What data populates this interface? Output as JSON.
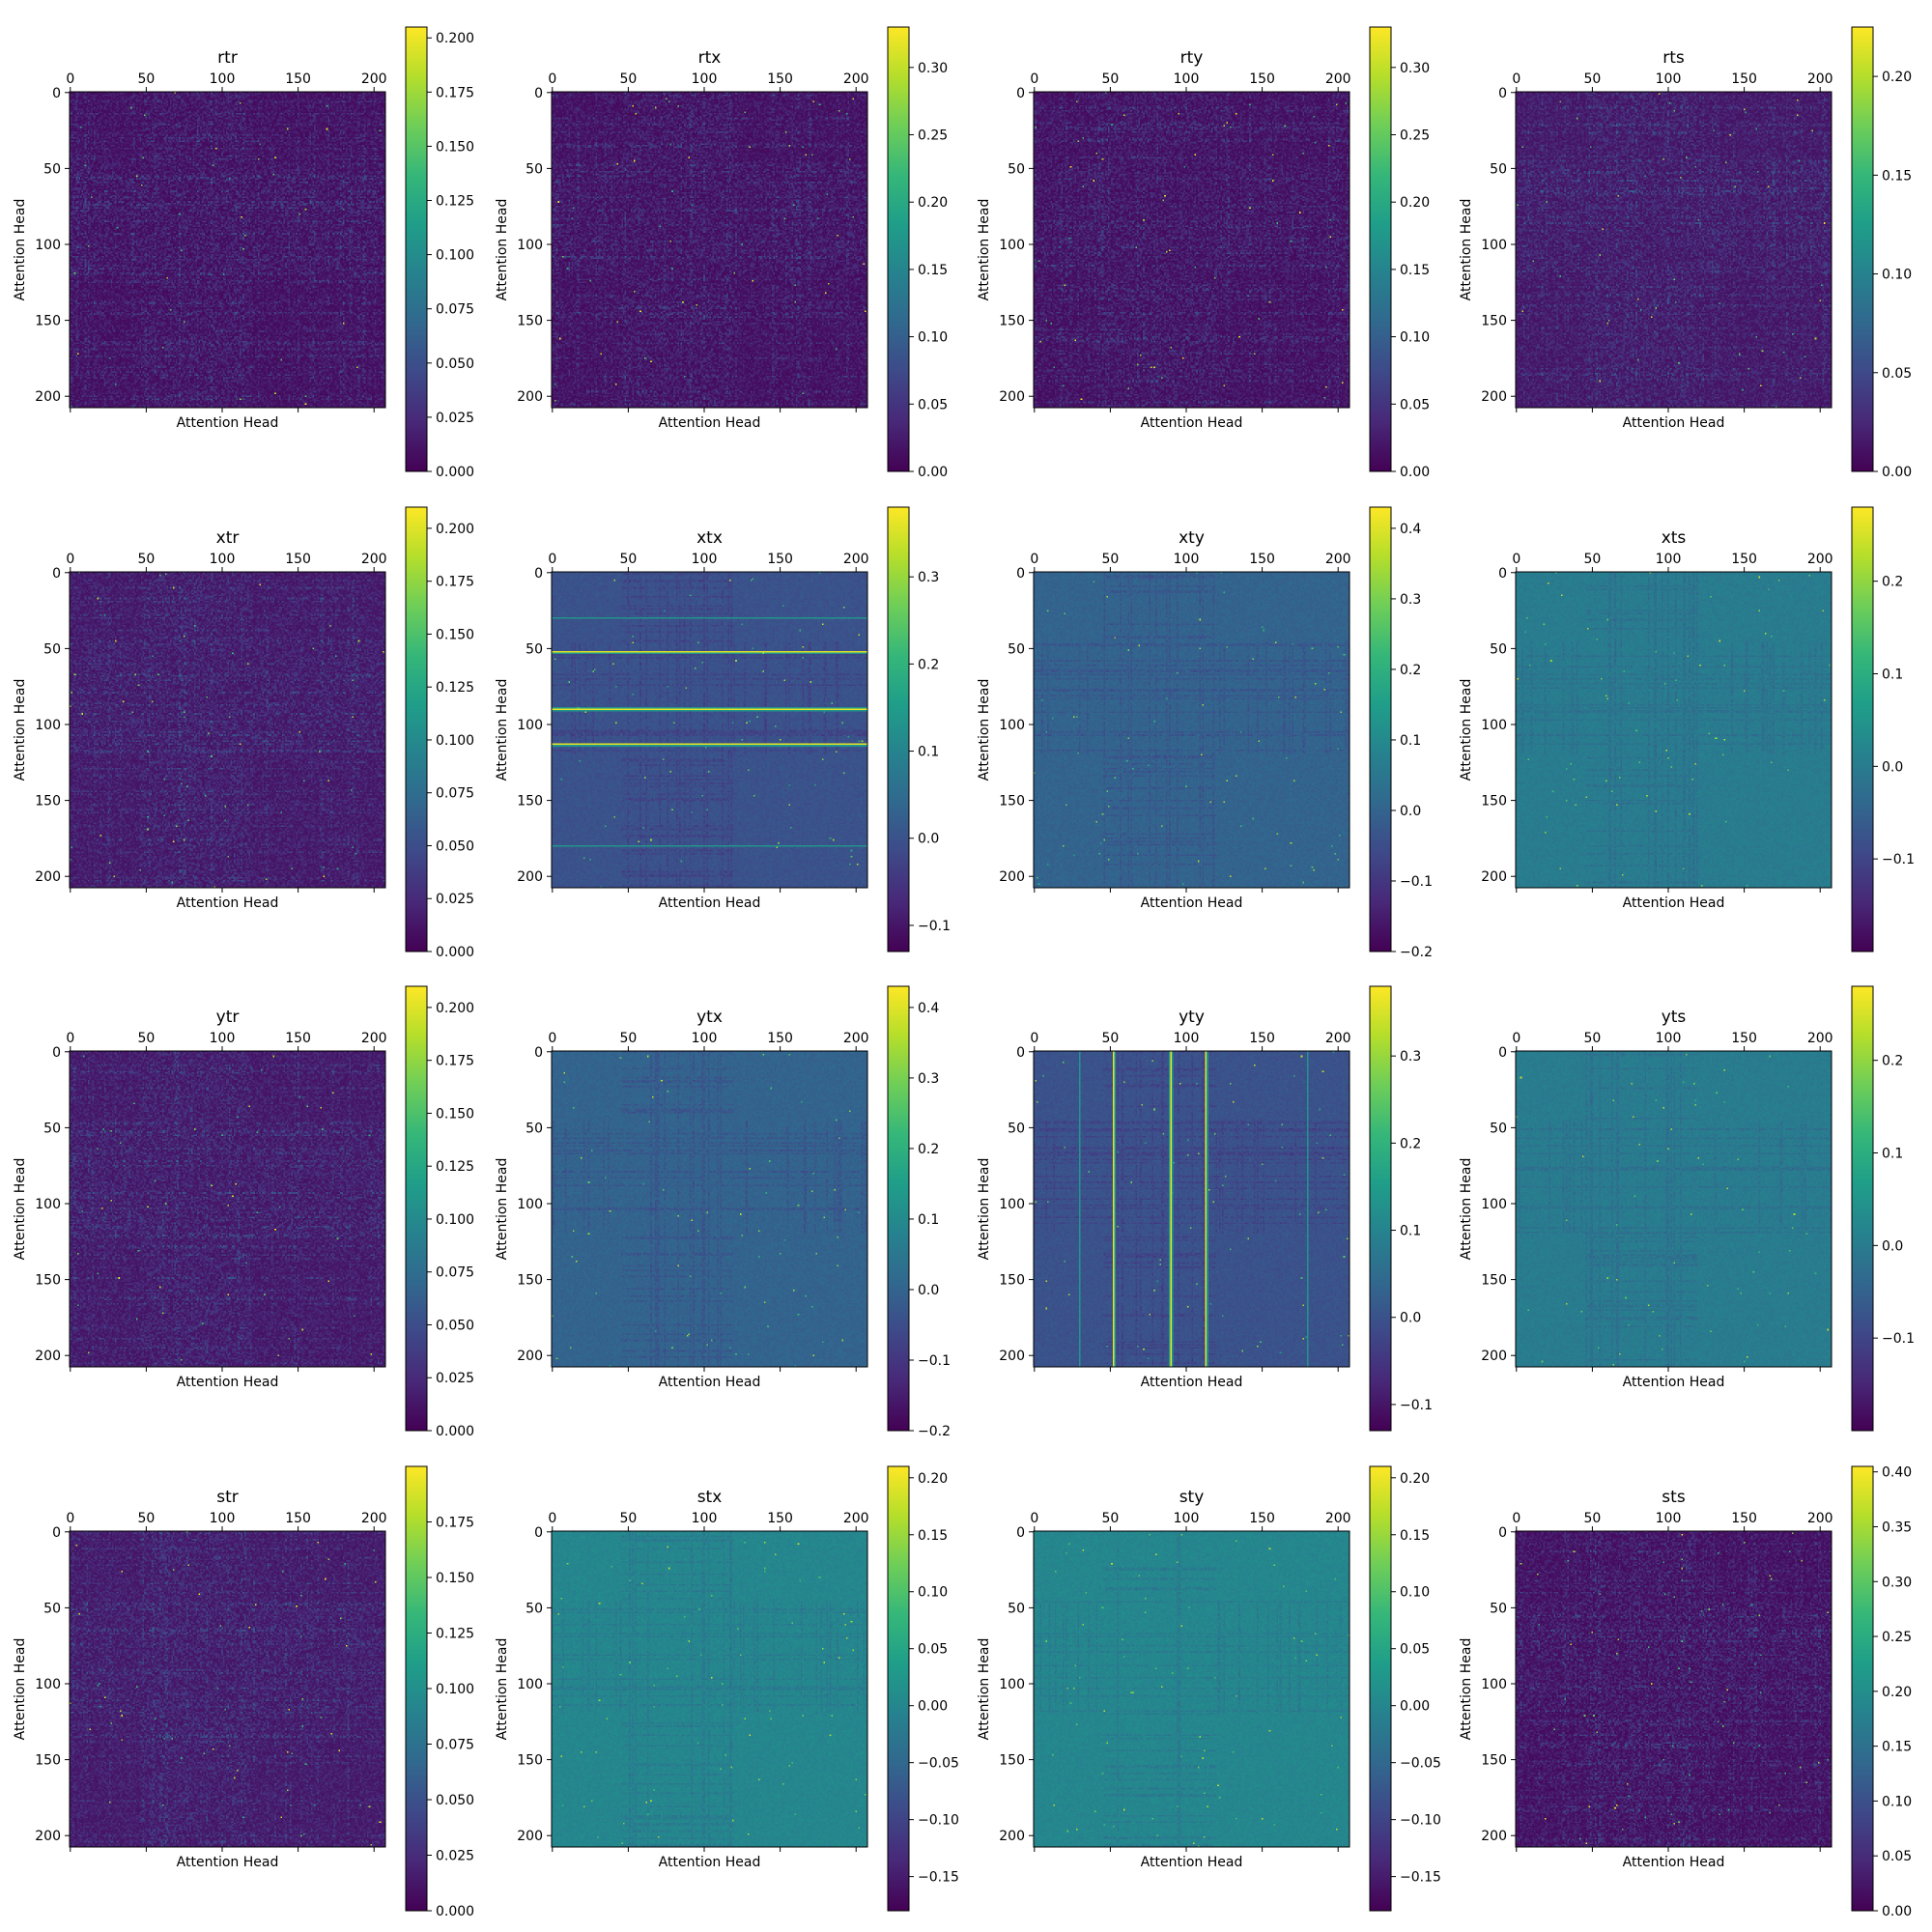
{
  "figure": {
    "grid": false,
    "colormap": "viridis",
    "colormap_stops": [
      "#440154",
      "#482878",
      "#3e4989",
      "#31688e",
      "#26828e",
      "#1f9e89",
      "#35b779",
      "#6ece58",
      "#b5de2b",
      "#fde725"
    ]
  },
  "chart_data": [
    {
      "type": "heatmap",
      "title": "rtr",
      "xlabel": "Attention Head",
      "ylabel": "Attention Head",
      "size": 208,
      "xticks": [
        0,
        50,
        100,
        150,
        200
      ],
      "yticks": [
        0,
        50,
        100,
        150,
        200
      ],
      "colorbar": {
        "range": [
          0,
          0.205
        ],
        "ticks": [
          0.0,
          0.025,
          0.05,
          0.075,
          0.1,
          0.125,
          0.15,
          0.175,
          0.2
        ],
        "tick_labels": [
          "0.000",
          "0.025",
          "0.050",
          "0.075",
          "0.100",
          "0.125",
          "0.150",
          "0.175",
          "0.200"
        ]
      },
      "baseline": 0.005,
      "pattern": "sparse peaks around heads 50-115"
    },
    {
      "type": "heatmap",
      "title": "rtx",
      "xlabel": "Attention Head",
      "ylabel": "Attention Head",
      "size": 208,
      "xticks": [
        0,
        50,
        100,
        150,
        200
      ],
      "yticks": [
        0,
        50,
        100,
        150,
        200
      ],
      "colorbar": {
        "range": [
          0,
          0.33
        ],
        "ticks": [
          0.0,
          0.05,
          0.1,
          0.15,
          0.2,
          0.25,
          0.3
        ],
        "tick_labels": [
          "0.00",
          "0.05",
          "0.10",
          "0.15",
          "0.20",
          "0.25",
          "0.30"
        ]
      },
      "baseline": 0.008,
      "pattern": "faint horizontal row structure"
    },
    {
      "type": "heatmap",
      "title": "rty",
      "xlabel": "Attention Head",
      "ylabel": "Attention Head",
      "size": 208,
      "xticks": [
        0,
        50,
        100,
        150,
        200
      ],
      "yticks": [
        0,
        50,
        100,
        150,
        200
      ],
      "colorbar": {
        "range": [
          0,
          0.33
        ],
        "ticks": [
          0.0,
          0.05,
          0.1,
          0.15,
          0.2,
          0.25,
          0.3
        ],
        "tick_labels": [
          "0.00",
          "0.05",
          "0.10",
          "0.15",
          "0.20",
          "0.25",
          "0.30"
        ]
      },
      "baseline": 0.008,
      "pattern": "faint vertical column structure"
    },
    {
      "type": "heatmap",
      "title": "rts",
      "xlabel": "Attention Head",
      "ylabel": "Attention Head",
      "size": 208,
      "xticks": [
        0,
        50,
        100,
        150,
        200
      ],
      "yticks": [
        0,
        50,
        100,
        150,
        200
      ],
      "colorbar": {
        "range": [
          0,
          0.225
        ],
        "ticks": [
          0.0,
          0.05,
          0.1,
          0.15,
          0.2
        ],
        "tick_labels": [
          "0.00",
          "0.05",
          "0.10",
          "0.15",
          "0.20"
        ]
      },
      "baseline": 0.01,
      "pattern": "grid of rows and columns, strongest in heads 50-120"
    },
    {
      "type": "heatmap",
      "title": "xtr",
      "xlabel": "Attention Head",
      "ylabel": "Attention Head",
      "size": 208,
      "xticks": [
        0,
        50,
        100,
        150,
        200
      ],
      "yticks": [
        0,
        50,
        100,
        150,
        200
      ],
      "colorbar": {
        "range": [
          0,
          0.21
        ],
        "ticks": [
          0.0,
          0.025,
          0.05,
          0.075,
          0.1,
          0.125,
          0.15,
          0.175,
          0.2
        ],
        "tick_labels": [
          "0.000",
          "0.025",
          "0.050",
          "0.075",
          "0.100",
          "0.125",
          "0.150",
          "0.175",
          "0.200"
        ]
      },
      "baseline": 0.01,
      "pattern": "horizontal row structure"
    },
    {
      "type": "heatmap",
      "title": "xtx",
      "xlabel": "Attention Head",
      "ylabel": "Attention Head",
      "size": 208,
      "xticks": [
        0,
        50,
        100,
        150,
        200
      ],
      "yticks": [
        0,
        50,
        100,
        150,
        200
      ],
      "colorbar": {
        "range": [
          -0.13,
          0.38
        ],
        "ticks": [
          -0.1,
          0.0,
          0.1,
          0.2,
          0.3
        ],
        "tick_labels": [
          "−0.1",
          "0.0",
          "0.1",
          "0.2",
          "0.3"
        ]
      },
      "baseline": 0.0,
      "pattern": "bright horizontal lines at rows 52, 90, 113"
    },
    {
      "type": "heatmap",
      "title": "xty",
      "xlabel": "Attention Head",
      "ylabel": "Attention Head",
      "size": 208,
      "xticks": [
        0,
        50,
        100,
        150,
        200
      ],
      "yticks": [
        0,
        50,
        100,
        150,
        200
      ],
      "colorbar": {
        "range": [
          -0.2,
          0.43
        ],
        "ticks": [
          -0.2,
          -0.1,
          0.0,
          0.1,
          0.2,
          0.3,
          0.4
        ],
        "tick_labels": [
          "−0.2",
          "−0.1",
          "0.0",
          "0.1",
          "0.2",
          "0.3",
          "0.4"
        ]
      },
      "baseline": 0.0,
      "pattern": "near-uniform with scattered outliers"
    },
    {
      "type": "heatmap",
      "title": "xts",
      "xlabel": "Attention Head",
      "ylabel": "Attention Head",
      "size": 208,
      "xticks": [
        0,
        50,
        100,
        150,
        200
      ],
      "yticks": [
        0,
        50,
        100,
        150,
        200
      ],
      "colorbar": {
        "range": [
          -0.2,
          0.28
        ],
        "ticks": [
          -0.1,
          0.0,
          0.1,
          0.2
        ],
        "tick_labels": [
          "−0.1",
          "0.0",
          "0.1",
          "0.2"
        ]
      },
      "baseline": 0.0,
      "pattern": "grid with dark negative patches in heads 50-120"
    },
    {
      "type": "heatmap",
      "title": "ytr",
      "xlabel": "Attention Head",
      "ylabel": "Attention Head",
      "size": 208,
      "xticks": [
        0,
        50,
        100,
        150,
        200
      ],
      "yticks": [
        0,
        50,
        100,
        150,
        200
      ],
      "colorbar": {
        "range": [
          0,
          0.21
        ],
        "ticks": [
          0.0,
          0.025,
          0.05,
          0.075,
          0.1,
          0.125,
          0.15,
          0.175,
          0.2
        ],
        "tick_labels": [
          "0.000",
          "0.025",
          "0.050",
          "0.075",
          "0.100",
          "0.125",
          "0.150",
          "0.175",
          "0.200"
        ]
      },
      "baseline": 0.01,
      "pattern": "vertical column structure"
    },
    {
      "type": "heatmap",
      "title": "ytx",
      "xlabel": "Attention Head",
      "ylabel": "Attention Head",
      "size": 208,
      "xticks": [
        0,
        50,
        100,
        150,
        200
      ],
      "yticks": [
        0,
        50,
        100,
        150,
        200
      ],
      "colorbar": {
        "range": [
          -0.2,
          0.43
        ],
        "ticks": [
          -0.2,
          -0.1,
          0.0,
          0.1,
          0.2,
          0.3,
          0.4
        ],
        "tick_labels": [
          "−0.2",
          "−0.1",
          "0.0",
          "0.1",
          "0.2",
          "0.3",
          "0.4"
        ]
      },
      "baseline": 0.0,
      "pattern": "near-uniform with scattered outliers"
    },
    {
      "type": "heatmap",
      "title": "yty",
      "xlabel": "Attention Head",
      "ylabel": "Attention Head",
      "size": 208,
      "xticks": [
        0,
        50,
        100,
        150,
        200
      ],
      "yticks": [
        0,
        50,
        100,
        150,
        200
      ],
      "colorbar": {
        "range": [
          -0.13,
          0.38
        ],
        "ticks": [
          -0.1,
          0.0,
          0.1,
          0.2,
          0.3
        ],
        "tick_labels": [
          "−0.1",
          "0.0",
          "0.1",
          "0.2",
          "0.3"
        ]
      },
      "baseline": 0.0,
      "pattern": "bright vertical lines at columns 52, 90, 113"
    },
    {
      "type": "heatmap",
      "title": "yts",
      "xlabel": "Attention Head",
      "ylabel": "Attention Head",
      "size": 208,
      "xticks": [
        0,
        50,
        100,
        150,
        200
      ],
      "yticks": [
        0,
        50,
        100,
        150,
        200
      ],
      "colorbar": {
        "range": [
          -0.2,
          0.28
        ],
        "ticks": [
          -0.1,
          0.0,
          0.1,
          0.2
        ],
        "tick_labels": [
          "−0.1",
          "0.0",
          "0.1",
          "0.2"
        ]
      },
      "baseline": 0.0,
      "pattern": "grid with dark negative patches in heads 50-120"
    },
    {
      "type": "heatmap",
      "title": "str",
      "xlabel": "Attention Head",
      "ylabel": "Attention Head",
      "size": 208,
      "xticks": [
        0,
        50,
        100,
        150,
        200
      ],
      "yticks": [
        0,
        50,
        100,
        150,
        200
      ],
      "colorbar": {
        "range": [
          0,
          0.2
        ],
        "ticks": [
          0.0,
          0.025,
          0.05,
          0.075,
          0.1,
          0.125,
          0.15,
          0.175
        ],
        "tick_labels": [
          "0.000",
          "0.025",
          "0.050",
          "0.075",
          "0.100",
          "0.125",
          "0.150",
          "0.175"
        ]
      },
      "baseline": 0.01,
      "pattern": "grid of rows and columns, strongest in heads 50-120"
    },
    {
      "type": "heatmap",
      "title": "stx",
      "xlabel": "Attention Head",
      "ylabel": "Attention Head",
      "size": 208,
      "xticks": [
        0,
        50,
        100,
        150,
        200
      ],
      "yticks": [
        0,
        50,
        100,
        150,
        200
      ],
      "colorbar": {
        "range": [
          -0.18,
          0.21
        ],
        "ticks": [
          -0.15,
          -0.1,
          -0.05,
          0.0,
          0.05,
          0.1,
          0.15,
          0.2
        ],
        "tick_labels": [
          "−0.15",
          "−0.10",
          "−0.05",
          "0.00",
          "0.05",
          "0.10",
          "0.15",
          "0.20"
        ]
      },
      "baseline": 0.0,
      "pattern": "grid with dark negative patches, scattered bright points"
    },
    {
      "type": "heatmap",
      "title": "sty",
      "xlabel": "Attention Head",
      "ylabel": "Attention Head",
      "size": 208,
      "xticks": [
        0,
        50,
        100,
        150,
        200
      ],
      "yticks": [
        0,
        50,
        100,
        150,
        200
      ],
      "colorbar": {
        "range": [
          -0.18,
          0.21
        ],
        "ticks": [
          -0.15,
          -0.1,
          -0.05,
          0.0,
          0.05,
          0.1,
          0.15,
          0.2
        ],
        "tick_labels": [
          "−0.15",
          "−0.10",
          "−0.05",
          "0.00",
          "0.05",
          "0.10",
          "0.15",
          "0.20"
        ]
      },
      "baseline": 0.0,
      "pattern": "grid with dark negative patches, scattered bright points"
    },
    {
      "type": "heatmap",
      "title": "sts",
      "xlabel": "Attention Head",
      "ylabel": "Attention Head",
      "size": 208,
      "xticks": [
        0,
        50,
        100,
        150,
        200
      ],
      "yticks": [
        0,
        50,
        100,
        150,
        200
      ],
      "colorbar": {
        "range": [
          0,
          0.405
        ],
        "ticks": [
          0.0,
          0.05,
          0.1,
          0.15,
          0.2,
          0.25,
          0.3,
          0.35,
          0.4
        ],
        "tick_labels": [
          "0.00",
          "0.05",
          "0.10",
          "0.15",
          "0.20",
          "0.25",
          "0.30",
          "0.35",
          "0.40"
        ]
      },
      "baseline": 0.01,
      "pattern": "grid of rows and columns, strongest in heads 50-120"
    }
  ]
}
